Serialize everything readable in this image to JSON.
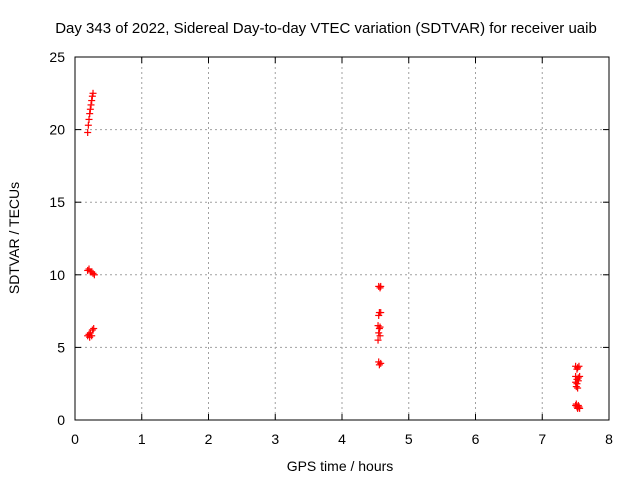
{
  "chart_data": {
    "type": "scatter",
    "title": "Day 343 of 2022, Sidereal Day-to-day VTEC variation (SDTVAR) for receiver uaib",
    "xlabel": "GPS time / hours",
    "ylabel": "SDTVAR / TECUs",
    "xlim": [
      0,
      8
    ],
    "ylim": [
      0,
      25
    ],
    "xticks": [
      0,
      1,
      2,
      3,
      4,
      5,
      6,
      7,
      8
    ],
    "yticks": [
      0,
      5,
      10,
      15,
      20,
      25
    ],
    "grid": true,
    "marker": "+",
    "marker_color": "#ff0000",
    "series": [
      {
        "name": "SDTVAR",
        "points": [
          [
            0.19,
            19.8
          ],
          [
            0.2,
            20.3
          ],
          [
            0.21,
            20.7
          ],
          [
            0.22,
            21.1
          ],
          [
            0.23,
            21.4
          ],
          [
            0.24,
            21.7
          ],
          [
            0.25,
            22.0
          ],
          [
            0.26,
            22.3
          ],
          [
            0.27,
            22.5
          ],
          [
            0.19,
            10.3
          ],
          [
            0.21,
            10.4
          ],
          [
            0.23,
            10.2
          ],
          [
            0.25,
            10.2
          ],
          [
            0.27,
            10.1
          ],
          [
            0.29,
            10.0
          ],
          [
            0.19,
            5.8
          ],
          [
            0.21,
            5.9
          ],
          [
            0.22,
            5.7
          ],
          [
            0.23,
            6.0
          ],
          [
            0.25,
            5.8
          ],
          [
            0.26,
            6.2
          ],
          [
            0.28,
            6.3
          ],
          [
            4.55,
            9.2
          ],
          [
            4.57,
            9.1
          ],
          [
            4.58,
            9.2
          ],
          [
            4.55,
            7.2
          ],
          [
            4.56,
            7.4
          ],
          [
            4.58,
            7.4
          ],
          [
            4.54,
            6.5
          ],
          [
            4.56,
            6.3
          ],
          [
            4.57,
            6.4
          ],
          [
            4.55,
            6.0
          ],
          [
            4.57,
            5.8
          ],
          [
            4.54,
            5.5
          ],
          [
            4.55,
            4.0
          ],
          [
            4.56,
            3.8
          ],
          [
            4.58,
            3.9
          ],
          [
            7.5,
            3.7
          ],
          [
            7.52,
            3.5
          ],
          [
            7.53,
            3.6
          ],
          [
            7.55,
            3.7
          ],
          [
            7.5,
            3.0
          ],
          [
            7.52,
            2.8
          ],
          [
            7.54,
            2.9
          ],
          [
            7.56,
            3.0
          ],
          [
            7.5,
            2.6
          ],
          [
            7.52,
            2.5
          ],
          [
            7.54,
            2.7
          ],
          [
            7.51,
            2.3
          ],
          [
            7.53,
            2.2
          ],
          [
            7.5,
            1.0
          ],
          [
            7.51,
            1.1
          ],
          [
            7.52,
            0.9
          ],
          [
            7.53,
            0.8
          ],
          [
            7.54,
            1.0
          ],
          [
            7.55,
            0.9
          ],
          [
            7.56,
            0.8
          ]
        ]
      }
    ]
  }
}
